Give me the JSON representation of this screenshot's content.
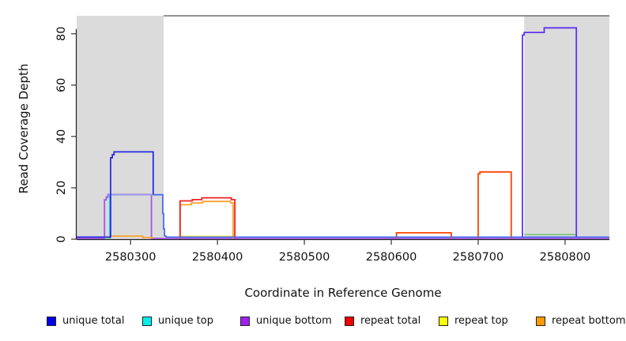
{
  "figure": {
    "xlabel": "Coordinate in Reference Genome",
    "ylabel": "Read Coverage Depth"
  },
  "legend": {
    "items": [
      {
        "label": "unique total",
        "color": "#0000EE"
      },
      {
        "label": "unique top",
        "color": "#00EEEE"
      },
      {
        "label": "unique bottom",
        "color": "#A020F0"
      },
      {
        "label": "repeat total",
        "color": "#EE0000"
      },
      {
        "label": "repeat top",
        "color": "#FFFF00"
      },
      {
        "label": "repeat bottom",
        "color": "#FF9900"
      }
    ]
  },
  "chart_data": {
    "type": "line",
    "title": "",
    "xlabel": "Coordinate in Reference Genome",
    "ylabel": "Read Coverage Depth",
    "xlim": [
      2580238,
      2580851
    ],
    "ylim": [
      0,
      87
    ],
    "grid": false,
    "legend_position": "bottom",
    "x_ticks": [
      2580300,
      2580400,
      2580500,
      2580600,
      2580700,
      2580800
    ],
    "x_tick_labels": [
      "2580300",
      "2580400",
      "2580500",
      "2580600",
      "2580700",
      "2580800"
    ],
    "y_ticks": [
      0,
      20,
      40,
      60,
      80
    ],
    "y_tick_labels": [
      "0",
      "20",
      "40",
      "60",
      "80"
    ],
    "region_color": "#dbdbdb",
    "shaded_regions": [
      {
        "x1": 2580238,
        "x2": 2580338
      },
      {
        "x1": 2580753,
        "x2": 2580851
      }
    ],
    "top_rule": {
      "x1": 2580338,
      "x2": 2580851,
      "color": "#6e6e6e"
    },
    "series": [
      {
        "name": "unique-bottom",
        "color": "#a855e8",
        "points": [
          [
            2580238,
            0.3
          ],
          [
            2580270,
            0.3
          ],
          [
            2580270,
            15.3
          ],
          [
            2580272,
            15.3
          ],
          [
            2580272,
            16.4
          ],
          [
            2580274,
            16.4
          ],
          [
            2580274,
            17.4
          ],
          [
            2580324,
            17.4
          ],
          [
            2580324,
            0.3
          ],
          [
            2580851,
            0.3
          ]
        ]
      },
      {
        "name": "baseline-green-left",
        "color": "#7ec87e",
        "points": [
          [
            2580270,
            0.5
          ],
          [
            2580277,
            0.5
          ]
        ]
      },
      {
        "name": "baseline-green-right",
        "color": "#7ec87e",
        "points": [
          [
            2580753,
            1.8
          ],
          [
            2580813,
            1.8
          ]
        ]
      },
      {
        "name": "unique-top-rise",
        "color": "#22d8e8",
        "points": [
          [
            2580276,
            0.2
          ],
          [
            2580276,
            17.3
          ],
          [
            2580281,
            17.3
          ]
        ]
      },
      {
        "name": "unique-top-overlap",
        "color": "#9a9ae8",
        "points": [
          [
            2580276,
            17.3
          ],
          [
            2580326,
            17.3
          ]
        ]
      },
      {
        "name": "repeat-top-block",
        "color": "#ffee44",
        "points": [
          [
            2580357,
            1.1
          ],
          [
            2580420,
            1.1
          ]
        ]
      },
      {
        "name": "repeat-bottom-bump",
        "color": "#ffa030",
        "points": [
          [
            2580277,
            1.2
          ],
          [
            2580314,
            1.2
          ],
          [
            2580314,
            0.6
          ],
          [
            2580325,
            0.6
          ],
          [
            2580325,
            0.2
          ]
        ]
      },
      {
        "name": "repeat-bottom-block",
        "color": "#ffa030",
        "points": [
          [
            2580357,
            0.2
          ],
          [
            2580357,
            13.4
          ],
          [
            2580370,
            13.4
          ],
          [
            2580370,
            14.1
          ],
          [
            2580383,
            14.1
          ],
          [
            2580383,
            14.7
          ],
          [
            2580415,
            14.7
          ],
          [
            2580415,
            14.1
          ],
          [
            2580418,
            14.1
          ],
          [
            2580418,
            0.2
          ]
        ]
      },
      {
        "name": "repeat-total-block",
        "color": "#ee2222",
        "points": [
          [
            2580357,
            0.2
          ],
          [
            2580357,
            14.9
          ],
          [
            2580371,
            14.9
          ],
          [
            2580371,
            15.4
          ],
          [
            2580382,
            15.4
          ],
          [
            2580382,
            16.1
          ],
          [
            2580416,
            16.1
          ],
          [
            2580416,
            15.4
          ],
          [
            2580420,
            15.4
          ],
          [
            2580420,
            0.2
          ]
        ]
      },
      {
        "name": "repeat-block-2580606",
        "color": "#ff4500",
        "points": [
          [
            2580606,
            0.2
          ],
          [
            2580606,
            2.5
          ],
          [
            2580669,
            2.5
          ],
          [
            2580669,
            0.2
          ]
        ]
      },
      {
        "name": "repeat-block-2580700",
        "color": "#ff4500",
        "points": [
          [
            2580700,
            0.2
          ],
          [
            2580700,
            25.5
          ],
          [
            2580702,
            25.5
          ],
          [
            2580702,
            26.2
          ],
          [
            2580738,
            26.2
          ],
          [
            2580738,
            0.2
          ]
        ]
      },
      {
        "name": "unique-total-main",
        "color": "#2a2ae0",
        "points": [
          [
            2580238,
            0.8
          ],
          [
            2580277,
            0.8
          ],
          [
            2580277,
            31.7
          ],
          [
            2580279,
            31.7
          ],
          [
            2580279,
            32.9
          ],
          [
            2580281,
            32.9
          ],
          [
            2580281,
            34
          ],
          [
            2580326,
            34
          ],
          [
            2580326,
            17.3
          ]
        ]
      },
      {
        "name": "unique-total-tail",
        "color": "#4a6ef0",
        "points": [
          [
            2580326,
            17.3
          ],
          [
            2580337,
            17.3
          ],
          [
            2580337,
            10
          ],
          [
            2580338,
            10
          ],
          [
            2580338,
            4
          ],
          [
            2580339,
            4
          ],
          [
            2580339,
            1.2
          ],
          [
            2580341,
            1.2
          ],
          [
            2580341,
            0.8
          ],
          [
            2580851,
            0.8
          ]
        ]
      },
      {
        "name": "unique-combined-peak",
        "color": "#5f33ee",
        "points": [
          [
            2580751,
            0.8
          ],
          [
            2580751,
            79.5
          ],
          [
            2580753,
            79.5
          ],
          [
            2580753,
            80.5
          ],
          [
            2580776,
            80.5
          ],
          [
            2580776,
            82.3
          ],
          [
            2580813,
            82.3
          ],
          [
            2580813,
            0.8
          ]
        ]
      }
    ]
  }
}
